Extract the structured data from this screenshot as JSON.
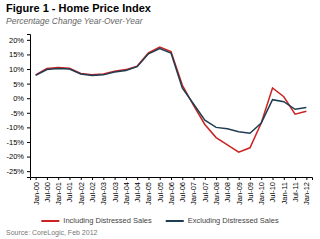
{
  "chart_data": {
    "type": "line",
    "title": "Figure 1 - Home Price Index",
    "subtitle": "Percentage Change Year-Over-Year",
    "source": "Source: CoreLogic, Feb 2012",
    "categories": [
      "Jan-00",
      "Jul-00",
      "Jan-01",
      "Jul-01",
      "Jan-02",
      "Jul-02",
      "Jan-03",
      "Jul-03",
      "Jan-04",
      "Jul-04",
      "Jan-05",
      "Jul-05",
      "Jan-06",
      "Jul-06",
      "Jan-07",
      "Jul-07",
      "Jan-08",
      "Jul-08",
      "Jan-09",
      "Jul-09",
      "Jan-10",
      "Jul-10",
      "Jan-11",
      "Jul-11",
      "Jan-12"
    ],
    "series": [
      {
        "name": "Including Distressed Sales",
        "color": "#cc2222",
        "values": [
          8.0,
          10.2,
          10.5,
          10.3,
          8.5,
          8.0,
          8.3,
          9.2,
          9.8,
          11.0,
          15.5,
          17.5,
          16.0,
          4.5,
          -2.5,
          -9.0,
          -13.5,
          -16.0,
          -18.5,
          -17.0,
          -8.5,
          3.5,
          0.5,
          -5.5,
          -4.5
        ]
      },
      {
        "name": "Excluding Distressed Sales",
        "color": "#1f3d52",
        "values": [
          7.8,
          9.8,
          10.2,
          10.0,
          8.3,
          7.8,
          8.0,
          9.0,
          9.5,
          10.8,
          15.2,
          17.0,
          15.5,
          3.5,
          -2.0,
          -7.5,
          -10.0,
          -10.5,
          -11.5,
          -12.0,
          -8.5,
          -0.5,
          -1.2,
          -3.8,
          -3.2
        ]
      }
    ],
    "ylim": [
      -27,
      22
    ],
    "yticks": [
      {
        "value": -25,
        "label": "-25%"
      },
      {
        "value": -20,
        "label": "-20%"
      },
      {
        "value": -15,
        "label": "-15%"
      },
      {
        "value": -10,
        "label": "-10%"
      },
      {
        "value": -5,
        "label": "-5%"
      },
      {
        "value": 0,
        "label": "0%"
      },
      {
        "value": 5,
        "label": "5%"
      },
      {
        "value": 10,
        "label": "10%"
      },
      {
        "value": 15,
        "label": "15%"
      },
      {
        "value": 20,
        "label": "20%"
      }
    ],
    "grid": false,
    "legend": "bottom"
  }
}
